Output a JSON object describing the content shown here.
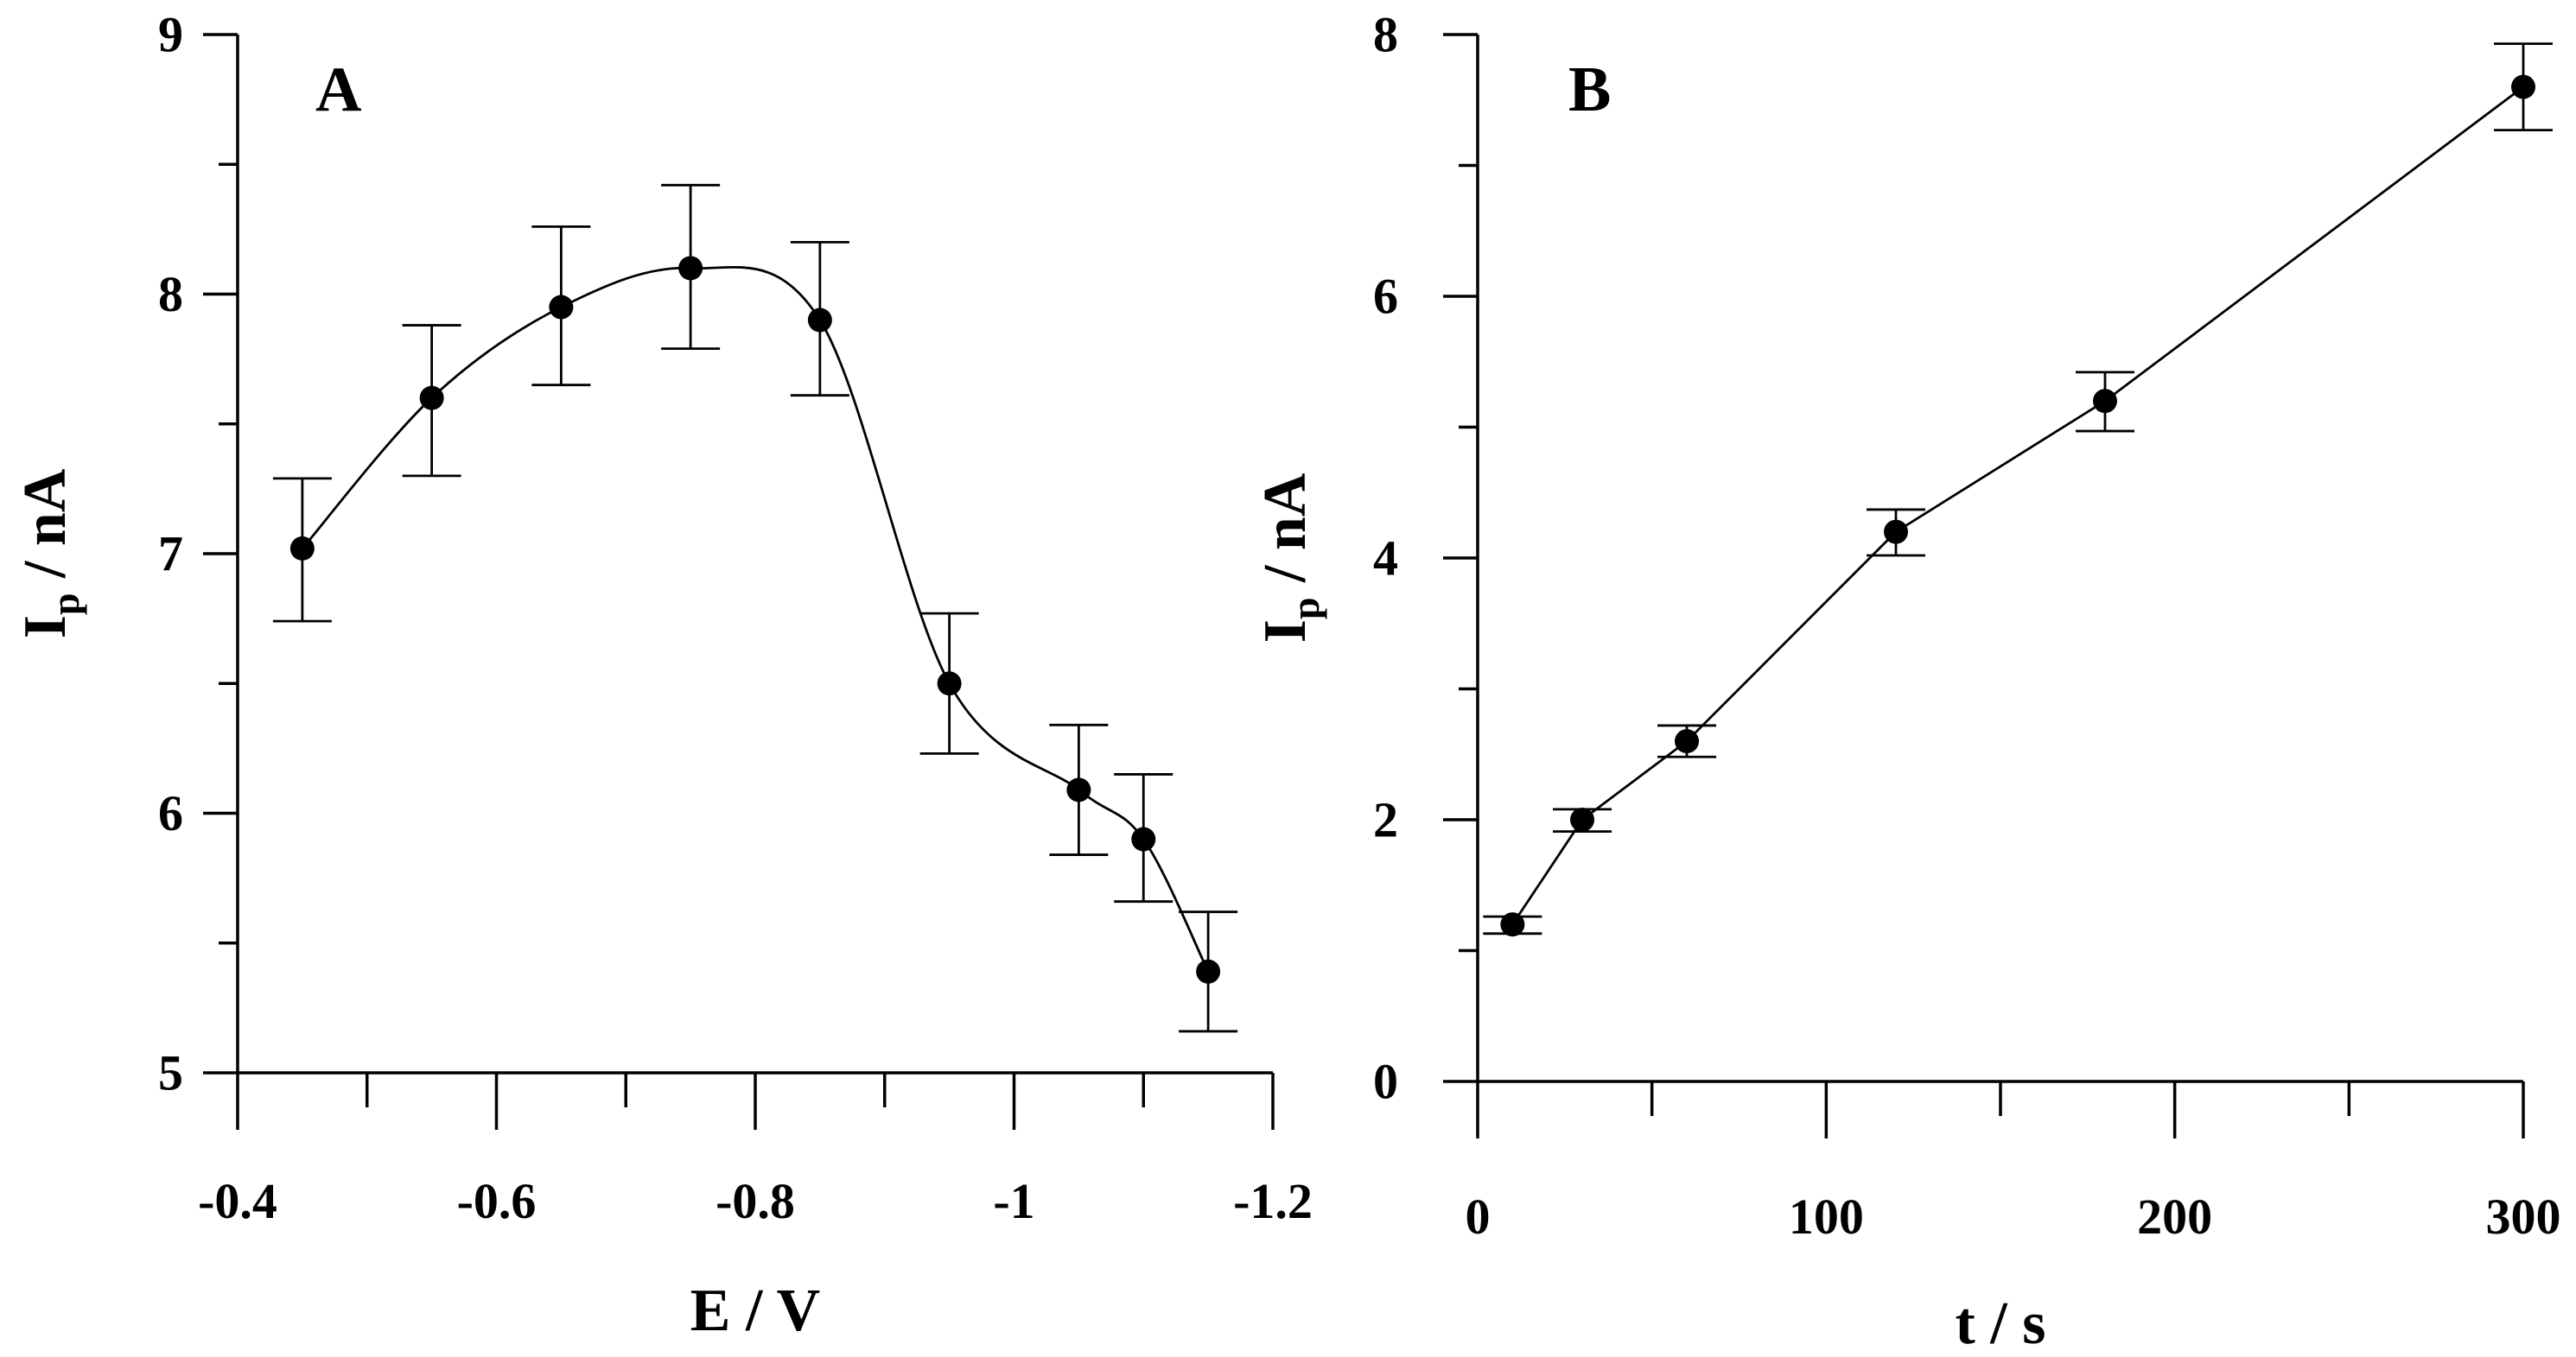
{
  "chart_data": [
    {
      "type": "line",
      "panel": "A",
      "xlabel": "E / V",
      "ylabel": {
        "main": "I",
        "sub": "p",
        "rest": " / nA"
      },
      "xlim": [
        -0.4,
        -1.2
      ],
      "ylim": [
        5,
        9
      ],
      "xticks": [
        -0.4,
        -0.6,
        -0.8,
        -1,
        -1.2
      ],
      "xtick_labels": [
        "-0.4",
        "-0.6",
        "-0.8",
        "-1",
        "-1.2"
      ],
      "x_minor_step": 0.1,
      "yticks": [
        5,
        6,
        7,
        8,
        9
      ],
      "ytick_labels": [
        "5",
        "6",
        "7",
        "8",
        "9"
      ],
      "y_minor_step": 0.5,
      "smooth": true,
      "x": [
        -0.45,
        -0.55,
        -0.65,
        -0.75,
        -0.85,
        -0.95,
        -1.05,
        -1.1,
        -1.15
      ],
      "y": [
        7.02,
        7.6,
        7.95,
        8.1,
        7.9,
        6.5,
        6.09,
        5.9,
        5.39
      ],
      "yerr_low": [
        6.74,
        7.3,
        7.65,
        7.79,
        7.61,
        6.23,
        5.84,
        5.66,
        5.16
      ],
      "yerr_high": [
        7.29,
        7.88,
        8.26,
        8.42,
        8.2,
        6.77,
        6.34,
        6.15,
        5.62
      ]
    },
    {
      "type": "line",
      "panel": "B",
      "xlabel": "t / s",
      "ylabel": {
        "main": "I",
        "sub": "p",
        "rest": " / nA"
      },
      "xlim": [
        0,
        300
      ],
      "ylim": [
        0,
        8
      ],
      "xticks": [
        0,
        100,
        200,
        300
      ],
      "xtick_labels": [
        "0",
        "100",
        "200",
        "300"
      ],
      "x_minor_step": 50,
      "yticks": [
        0,
        2,
        4,
        6,
        8
      ],
      "ytick_labels": [
        "0",
        "2",
        "4",
        "6",
        "8"
      ],
      "y_minor_step": 1,
      "smooth": false,
      "x": [
        10,
        30,
        60,
        120,
        180,
        300
      ],
      "y": [
        1.2,
        2.0,
        2.6,
        4.2,
        5.2,
        7.6
      ],
      "yerr_low": [
        1.13,
        1.91,
        2.48,
        4.02,
        4.97,
        7.27
      ],
      "yerr_high": [
        1.26,
        2.08,
        2.72,
        4.37,
        5.42,
        7.93
      ]
    }
  ]
}
